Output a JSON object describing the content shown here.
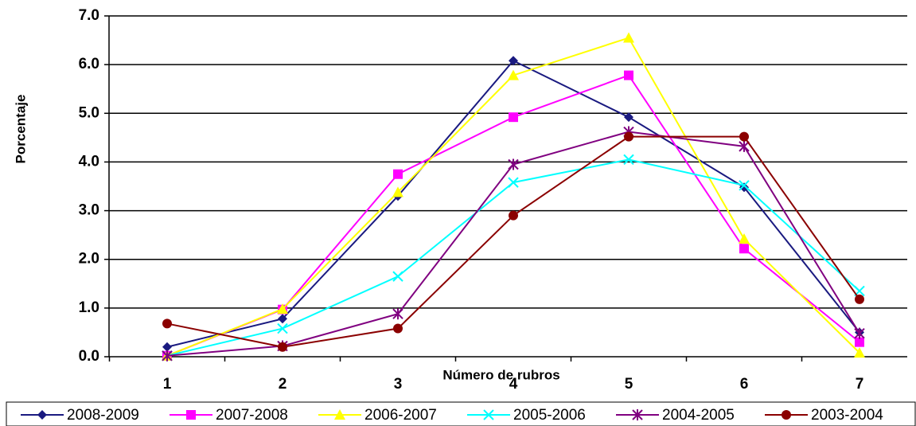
{
  "chart_data": {
    "type": "line",
    "title": "",
    "xlabel": "Número de rubros",
    "ylabel": "Porcentaje",
    "x": [
      1,
      2,
      3,
      4,
      5,
      6,
      7
    ],
    "x_tick_labels": [
      "1",
      "2",
      "3",
      "4",
      "5",
      "6",
      "7"
    ],
    "ylim": [
      0,
      7
    ],
    "y_tick_labels": [
      "0.0",
      "1.0",
      "2.0",
      "3.0",
      "4.0",
      "5.0",
      "6.0",
      "7.0"
    ],
    "grid": "horizontal",
    "legend_position": "bottom",
    "series": [
      {
        "name": "2008-2009",
        "color": "#1a1a80",
        "marker": "diamond",
        "values": [
          0.2,
          0.78,
          3.3,
          6.08,
          4.92,
          3.48,
          0.5
        ]
      },
      {
        "name": "2007-2008",
        "color": "#ff00ff",
        "marker": "square",
        "values": [
          0.02,
          0.97,
          3.75,
          4.92,
          5.78,
          2.22,
          0.3
        ]
      },
      {
        "name": "2006-2007",
        "color": "#ffff00",
        "marker": "triangle",
        "values": [
          0.02,
          0.98,
          3.38,
          5.78,
          6.55,
          2.42,
          0.08
        ]
      },
      {
        "name": "2005-2006",
        "color": "#00ffff",
        "marker": "x",
        "values": [
          0.02,
          0.58,
          1.65,
          3.58,
          4.05,
          3.52,
          1.35
        ]
      },
      {
        "name": "2004-2005",
        "color": "#800080",
        "marker": "star",
        "values": [
          0.02,
          0.22,
          0.88,
          3.95,
          4.62,
          4.32,
          0.48
        ]
      },
      {
        "name": "2003-2004",
        "color": "#8b0000",
        "marker": "circle",
        "values": [
          0.68,
          0.2,
          0.58,
          2.9,
          4.52,
          4.52,
          1.18
        ]
      }
    ]
  }
}
